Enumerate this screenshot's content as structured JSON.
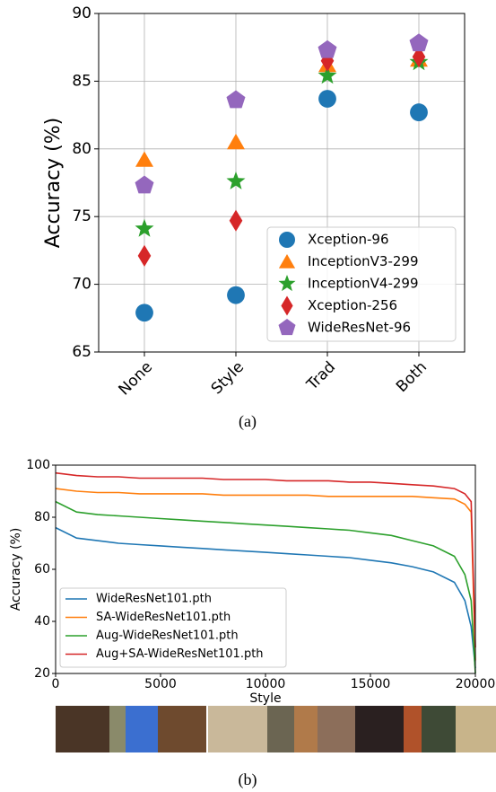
{
  "chart_data": [
    {
      "type": "scatter",
      "caption": "(a)",
      "y_label": "Accuracy (%)",
      "categories": [
        "None",
        "Style",
        "Trad",
        "Both"
      ],
      "ylim": [
        65,
        90
      ],
      "yticks": [
        65,
        70,
        75,
        80,
        85,
        90
      ],
      "grid": true,
      "legend": "lower right",
      "series": [
        {
          "name": "Xception-96",
          "color": "#1f77b4",
          "marker": "circle",
          "values": [
            67.9,
            69.2,
            83.7,
            82.7
          ]
        },
        {
          "name": "InceptionV3-299",
          "color": "#ff7f0e",
          "marker": "triangle",
          "values": [
            79.2,
            80.5,
            86.2,
            86.6
          ]
        },
        {
          "name": "InceptionV4-299",
          "color": "#2ca02c",
          "marker": "star",
          "values": [
            74.1,
            77.6,
            85.4,
            86.4
          ]
        },
        {
          "name": "Xception-256",
          "color": "#d62728",
          "marker": "diamond",
          "values": [
            72.1,
            74.7,
            86.5,
            86.8
          ]
        },
        {
          "name": "WideResNet-96",
          "color": "#9467bd",
          "marker": "pentagon",
          "values": [
            77.3,
            83.6,
            87.3,
            87.8
          ]
        }
      ]
    },
    {
      "type": "line",
      "caption": "(b)",
      "y_label": "Accuracy (%)",
      "x_label": "Style",
      "x": [
        0,
        1000,
        2000,
        3000,
        4000,
        5000,
        6000,
        7000,
        8000,
        9000,
        10000,
        11000,
        12000,
        13000,
        14000,
        15000,
        16000,
        17000,
        18000,
        19000,
        19500,
        19800,
        20000
      ],
      "xlim": [
        0,
        20000
      ],
      "xticks": [
        0,
        5000,
        10000,
        15000,
        20000
      ],
      "ylim": [
        20,
        100
      ],
      "yticks": [
        20,
        40,
        60,
        80,
        100
      ],
      "grid": false,
      "legend": "lower left",
      "series": [
        {
          "name": "WideResNet101.pth",
          "color": "#1f77b4",
          "values": [
            76,
            72,
            71,
            70,
            69.5,
            69,
            68.5,
            68,
            67.5,
            67,
            66.5,
            66,
            65.5,
            65,
            64.5,
            63.5,
            62.5,
            61,
            59,
            55,
            48,
            38,
            22
          ]
        },
        {
          "name": "SA-WideResNet101.pth",
          "color": "#ff7f0e",
          "values": [
            91,
            90,
            89.5,
            89.5,
            89,
            89,
            89,
            89,
            88.5,
            88.5,
            88.5,
            88.5,
            88.5,
            88,
            88,
            88,
            88,
            88,
            87.5,
            87,
            85,
            82,
            25
          ]
        },
        {
          "name": "Aug-WideResNet101.pth",
          "color": "#2ca02c",
          "values": [
            86,
            82,
            81,
            80.5,
            80,
            79.5,
            79,
            78.5,
            78,
            77.5,
            77,
            76.5,
            76,
            75.5,
            75,
            74,
            73,
            71,
            69,
            65,
            58,
            48,
            20
          ]
        },
        {
          "name": "Aug+SA-WideResNet101.pth",
          "color": "#d62728",
          "values": [
            97,
            96,
            95.5,
            95.5,
            95,
            95,
            95,
            95,
            94.5,
            94.5,
            94.5,
            94,
            94,
            94,
            93.5,
            93.5,
            93,
            92.5,
            92,
            91,
            89,
            86,
            30
          ]
        }
      ]
    }
  ]
}
